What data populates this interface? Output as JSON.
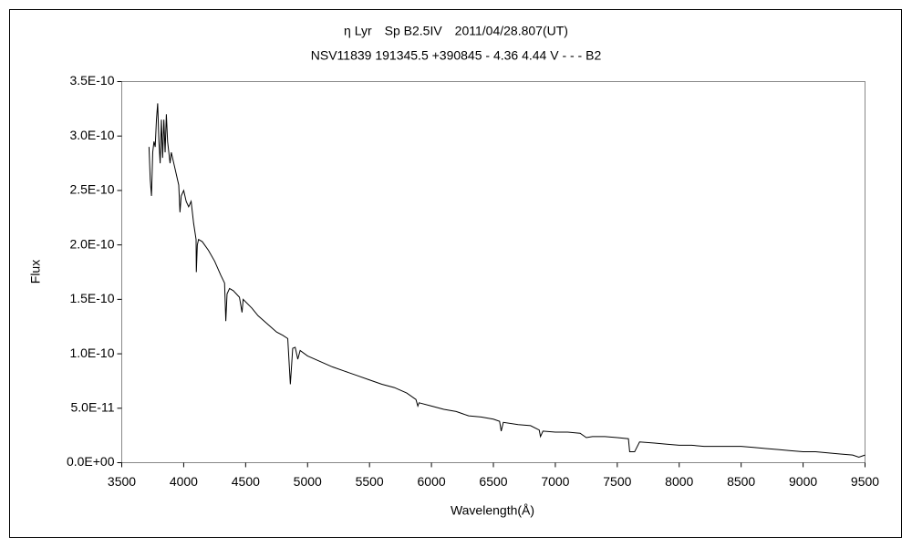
{
  "chart_data": {
    "type": "line",
    "title": "η Lyr　Sp B2.5IV　2011/04/28.807(UT)",
    "subtitle": "NSV11839 191345.5 +390845 - 4.36 4.44 V - - - B2",
    "x_label": "Wavelength(Å)",
    "y_label": "Flux",
    "color": "#000000",
    "xlim": [
      3500,
      9500
    ],
    "xticks": [
      3500,
      4000,
      4500,
      5000,
      5500,
      6000,
      6500,
      7000,
      7500,
      8000,
      8500,
      9000,
      9500
    ],
    "ylim": [
      0,
      3.5e-10
    ],
    "yticks": [
      {
        "value": 0,
        "label": "0.0E+00"
      },
      {
        "value": 5e-11,
        "label": "5.0E-11"
      },
      {
        "value": 1e-10,
        "label": "1.0E-10"
      },
      {
        "value": 1.5e-10,
        "label": "1.5E-10"
      },
      {
        "value": 2e-10,
        "label": "2.0E-10"
      },
      {
        "value": 2.5e-10,
        "label": "2.5E-10"
      },
      {
        "value": 3e-10,
        "label": "3.0E-10"
      },
      {
        "value": 3.5e-10,
        "label": "3.5E-10"
      }
    ],
    "grid": false,
    "x": [
      3720,
      3730,
      3740,
      3750,
      3760,
      3770,
      3780,
      3790,
      3800,
      3810,
      3820,
      3830,
      3840,
      3850,
      3860,
      3870,
      3880,
      3890,
      3900,
      3920,
      3940,
      3960,
      3970,
      3980,
      4000,
      4020,
      4040,
      4060,
      4080,
      4100,
      4102,
      4110,
      4120,
      4150,
      4200,
      4250,
      4300,
      4330,
      4340,
      4350,
      4370,
      4400,
      4450,
      4471,
      4480,
      4550,
      4600,
      4650,
      4700,
      4750,
      4800,
      4840,
      4861,
      4880,
      4900,
      4921,
      4940,
      5000,
      5100,
      5200,
      5300,
      5400,
      5500,
      5600,
      5700,
      5800,
      5875,
      5890,
      5900,
      6000,
      6100,
      6200,
      6300,
      6400,
      6500,
      6550,
      6563,
      6580,
      6700,
      6800,
      6870,
      6880,
      6900,
      7000,
      7100,
      7200,
      7250,
      7300,
      7400,
      7500,
      7590,
      7600,
      7640,
      7680,
      7800,
      7900,
      8000,
      8100,
      8200,
      8300,
      8400,
      8500,
      8600,
      8700,
      8800,
      8900,
      9000,
      9100,
      9200,
      9300,
      9400,
      9450,
      9500
    ],
    "values": [
      2.9e-10,
      2.6e-10,
      2.45e-10,
      2.85e-10,
      2.95e-10,
      2.9e-10,
      3.15e-10,
      3.3e-10,
      2.95e-10,
      2.75e-10,
      3.15e-10,
      2.8e-10,
      3.15e-10,
      2.85e-10,
      3.2e-10,
      2.95e-10,
      2.85e-10,
      2.75e-10,
      2.85e-10,
      2.75e-10,
      2.65e-10,
      2.55e-10,
      2.3e-10,
      2.45e-10,
      2.5e-10,
      2.4e-10,
      2.35e-10,
      2.4e-10,
      2.2e-10,
      2.05e-10,
      1.75e-10,
      2e-10,
      2.05e-10,
      2.03e-10,
      1.95e-10,
      1.85e-10,
      1.72e-10,
      1.65e-10,
      1.3e-10,
      1.55e-10,
      1.6e-10,
      1.58e-10,
      1.52e-10,
      1.38e-10,
      1.5e-10,
      1.42e-10,
      1.35e-10,
      1.3e-10,
      1.25e-10,
      1.2e-10,
      1.17e-10,
      1.14e-10,
      7.2e-11,
      1.05e-10,
      1.06e-10,
      9.5e-11,
      1.03e-10,
      9.8e-11,
      9.3e-11,
      8.8e-11,
      8.4e-11,
      8e-11,
      7.6e-11,
      7.2e-11,
      6.9e-11,
      6.4e-11,
      5.8e-11,
      5.2e-11,
      5.5e-11,
      5.2e-11,
      4.9e-11,
      4.7e-11,
      4.3e-11,
      4.2e-11,
      4e-11,
      3.8e-11,
      2.9e-11,
      3.7e-11,
      3.5e-11,
      3.4e-11,
      3e-11,
      2.4e-11,
      2.9e-11,
      2.8e-11,
      2.8e-11,
      2.7e-11,
      2.3e-11,
      2.4e-11,
      2.4e-11,
      2.3e-11,
      2.2e-11,
      1e-11,
      1e-11,
      1.9e-11,
      1.8e-11,
      1.7e-11,
      1.6e-11,
      1.6e-11,
      1.5e-11,
      1.5e-11,
      1.5e-11,
      1.5e-11,
      1.4e-11,
      1.3e-11,
      1.2e-11,
      1.1e-11,
      1e-11,
      1e-11,
      9e-12,
      8e-12,
      7e-12,
      5e-12,
      7e-12
    ]
  }
}
